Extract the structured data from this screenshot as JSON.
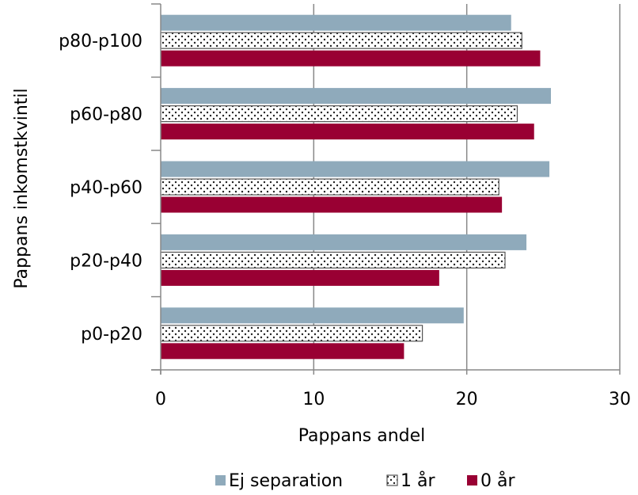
{
  "chart_data": {
    "type": "bar",
    "orientation": "horizontal",
    "categories": [
      "p0-p20",
      "p20-p40",
      "p40-p60",
      "p60-p80",
      "p80-p100"
    ],
    "series": [
      {
        "name": "Ej separation",
        "values": [
          19.8,
          23.9,
          25.4,
          25.5,
          22.9
        ],
        "color": "#8FAABB",
        "pattern": "solid"
      },
      {
        "name": "1 år",
        "values": [
          17.1,
          22.5,
          22.1,
          23.3,
          23.6
        ],
        "color": "#FFFFFF",
        "pattern": "dots"
      },
      {
        "name": "0 år",
        "values": [
          15.9,
          18.2,
          22.3,
          24.4,
          24.8
        ],
        "color": "#990033",
        "pattern": "solid"
      }
    ],
    "xlabel": "Pappans andel",
    "ylabel": "Pappans inkomstkvintil",
    "xlim": [
      0,
      30
    ],
    "xticks": [
      "0",
      "10",
      "20",
      "30"
    ],
    "grid": "vertical",
    "legend": "bottom"
  }
}
